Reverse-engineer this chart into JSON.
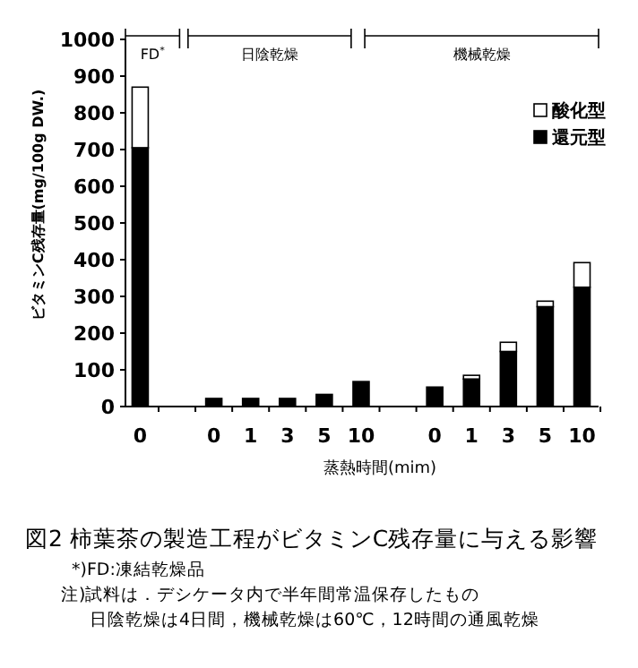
{
  "chart_data": {
    "type": "bar",
    "stacked": true,
    "title": "図2  柿葉茶の製造工程がビタミンC残存量に与える影響",
    "xlabel": "蒸熱時間(mim)",
    "ylabel": "ビタミンC残存量(mg/100g  DW.)",
    "categories": [
      "0",
      null,
      "0",
      "1",
      "3",
      "5",
      "10",
      null,
      "0",
      "1",
      "3",
      "5",
      "10"
    ],
    "series": [
      {
        "name": "還元型",
        "color": "#000000",
        "values": [
          705,
          null,
          22,
          22,
          22,
          33,
          68,
          null,
          53,
          75,
          150,
          272,
          325
        ]
      },
      {
        "name": "酸化型",
        "color": "#ffffff",
        "values": [
          165,
          null,
          0,
          0,
          0,
          0,
          0,
          null,
          0,
          10,
          25,
          15,
          67
        ]
      }
    ],
    "ylim": [
      0,
      1000
    ],
    "yticks": [
      0,
      100,
      200,
      300,
      400,
      500,
      600,
      700,
      800,
      900,
      1000
    ],
    "legend": "top right",
    "grid": false,
    "annotations": [
      "FD$^{*}$",
      "日陰乾燥",
      "機械乾燥",
      "*)FD:凍結乾燥品",
      "注)試料は．デシケータ内で半年間常温保存したもの",
      "日陰乾燥は4日間，機械乾燥は60℃，12時間の通風乾燥"
    ]
  }
}
